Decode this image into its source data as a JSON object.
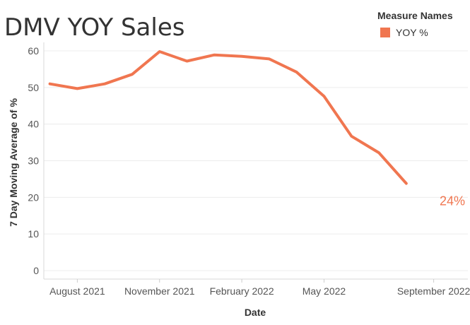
{
  "chart_data": {
    "type": "line",
    "title": "DMV YOY Sales",
    "xlabel": "Date",
    "ylabel": "7 Day Moving Average of %",
    "ylim": [
      0,
      60
    ],
    "y_ticks": [
      "0",
      "10",
      "20",
      "30",
      "40",
      "50",
      "60"
    ],
    "x_ticks": [
      "August 2021",
      "November 2021",
      "February 2022",
      "May 2022",
      "September 2022"
    ],
    "grid": true,
    "legend": {
      "title": "Measure Names",
      "placement": "top-right"
    },
    "color": "#f07650",
    "end_label": "24%",
    "series": [
      {
        "name": "YOY %",
        "x": [
          "2021-07",
          "2021-08",
          "2021-09",
          "2021-10",
          "2021-11",
          "2021-12",
          "2022-01",
          "2022-02",
          "2022-03",
          "2022-04",
          "2022-05",
          "2022-06",
          "2022-07",
          "2022-08",
          "2022-09"
        ],
        "values": [
          51,
          49.7,
          51,
          53.6,
          59.8,
          57.2,
          58.9,
          58.5,
          57.8,
          54.2,
          47.6,
          36.7,
          32.2,
          23.8,
          23.8
        ]
      }
    ]
  }
}
